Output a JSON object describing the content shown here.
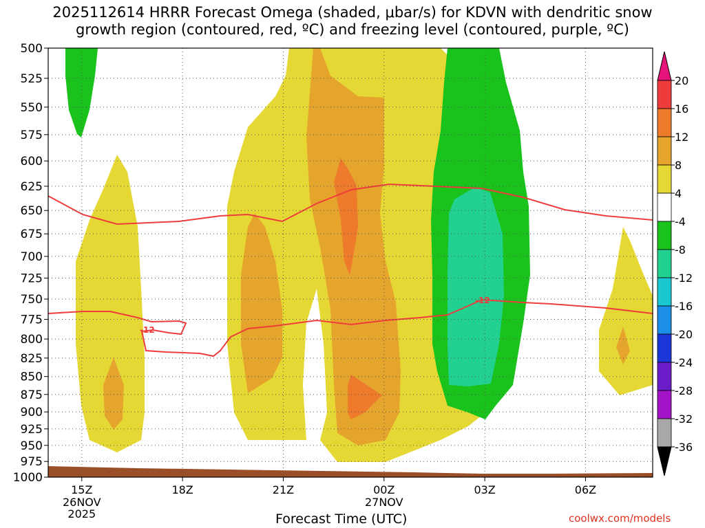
{
  "title_line1": "2025112614 HRRR Forecast Omega (shaded, μbar/s) for KDVN with dendritic snow",
  "title_line2": "growth region (contoured, red, ºC) and freezing level (contoured, purple, ºC)",
  "credit": "coolwx.com/models",
  "chart_data": {
    "type": "contour",
    "title": "2025112614 HRRR Forecast Omega (shaded, μbar/s) for KDVN with dendritic snow growth region (contoured, red, ºC) and freezing level (contoured, purple, ºC)",
    "xlabel": "Forecast Time (UTC)",
    "ylabel": "",
    "y_axis": {
      "ticks": [
        500,
        525,
        550,
        575,
        600,
        625,
        650,
        675,
        700,
        725,
        750,
        775,
        800,
        825,
        850,
        875,
        900,
        925,
        950,
        975,
        1000
      ],
      "inverted": true,
      "scale": "log-pressure"
    },
    "x_axis": {
      "ticks": [
        {
          "hour": 15,
          "label": "15Z",
          "sub": [
            "26NOV",
            "2025"
          ]
        },
        {
          "hour": 18,
          "label": "18Z",
          "sub": []
        },
        {
          "hour": 21,
          "label": "21Z",
          "sub": []
        },
        {
          "hour": 24,
          "label": "00Z",
          "sub": [
            "27NOV"
          ]
        },
        {
          "hour": 27,
          "label": "03Z",
          "sub": []
        },
        {
          "hour": 30,
          "label": "06Z",
          "sub": []
        }
      ],
      "range": [
        14,
        32
      ]
    },
    "grid": true,
    "colorbar": {
      "units": "μbar/s",
      "levels": [
        20,
        16,
        12,
        8,
        4,
        -4,
        -8,
        -12,
        -16,
        -20,
        -24,
        -28,
        -32,
        -36
      ],
      "colors": {
        "above_20": "#e6147a",
        "16_20": "#ee3b3b",
        "12_16": "#ee7a2c",
        "8_12": "#e5a52c",
        "4_8": "#e5d835",
        "m4_4": "#ffffff",
        "m8_m4": "#19c31c",
        "m12_m8": "#22d190",
        "m16_m12": "#19c8d1",
        "m20_m16": "#1b8ee8",
        "m24_m20": "#1c37d8",
        "m28_m24": "#6a1cc8",
        "m32_m28": "#a213c7",
        "m36_m32": "#a8a8a8",
        "below_m36": "#000000"
      }
    },
    "contour_label": "-12",
    "terrain_color": "#9a4f28"
  }
}
